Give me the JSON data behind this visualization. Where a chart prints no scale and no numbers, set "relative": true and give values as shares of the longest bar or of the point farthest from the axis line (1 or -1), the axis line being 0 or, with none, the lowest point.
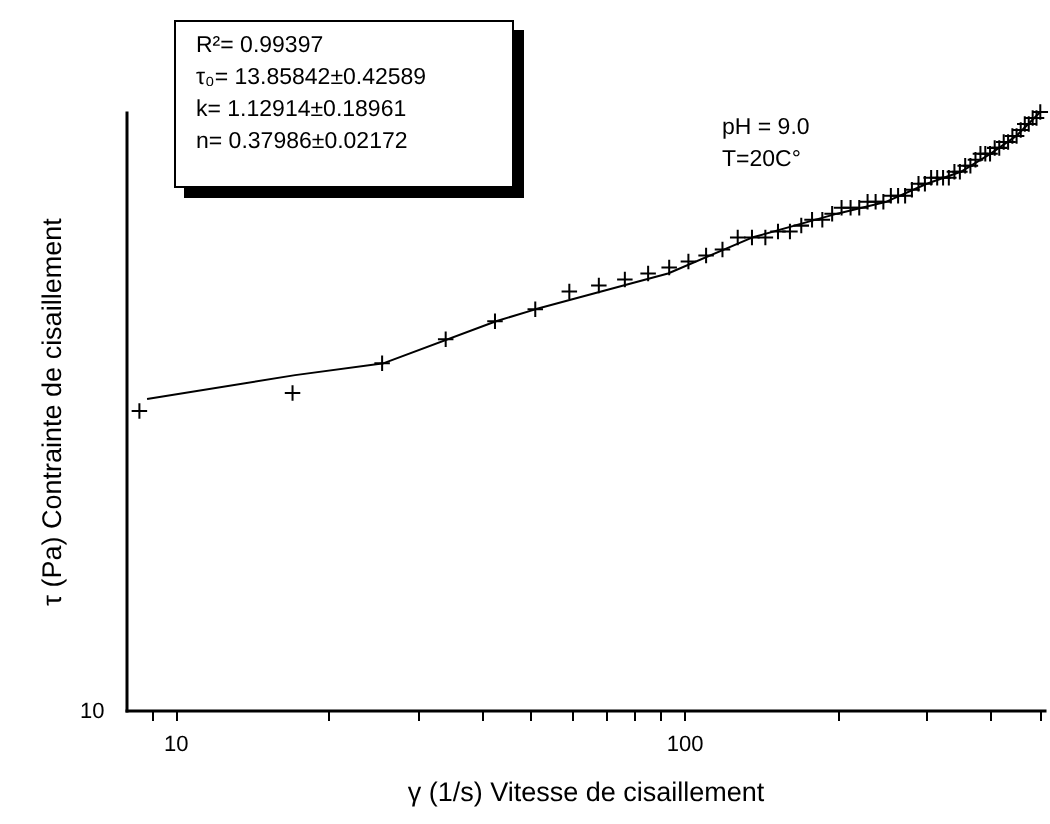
{
  "chart_data": {
    "type": "scatter",
    "xlabel": "γ (1/s) Vitesse de cisaillement",
    "ylabel": "τ (Pa) Contrainte de cisaillement",
    "log": "x",
    "relative": true,
    "tick_labels": "x",
    "xlim": [
      8,
      510
    ],
    "xticks": [
      {
        "value": 9,
        "label": null
      },
      10,
      {
        "value": 20,
        "label": null
      },
      {
        "value": 30,
        "label": null
      },
      {
        "value": 40,
        "label": null
      },
      {
        "value": 50,
        "label": null
      },
      {
        "value": 60,
        "label": null
      },
      {
        "value": 70,
        "label": null
      },
      {
        "value": 80,
        "label": null
      },
      {
        "value": 90,
        "label": null
      },
      100,
      {
        "value": 200,
        "label": null
      },
      {
        "value": 300,
        "label": null
      },
      {
        "value": 400,
        "label": null
      },
      {
        "value": 500,
        "label": null
      }
    ],
    "series": [
      {
        "marker": "cross",
        "color": "#000000",
        "x": [
          8.5,
          17,
          25.5,
          34,
          42.5,
          51,
          59.5,
          68,
          76.5,
          85,
          93.5,
          102,
          110.5,
          119,
          127.5,
          136,
          144.5,
          153,
          161.5,
          170,
          178.5,
          187,
          195.5,
          204,
          212.5,
          221,
          229.5,
          238,
          246.5,
          255,
          263.5,
          272,
          280.5,
          289,
          297.5,
          306,
          314.5,
          323,
          331.5,
          340,
          348.5,
          357,
          365.5,
          374,
          382.5,
          391,
          399.5,
          408,
          416.5,
          425,
          433.5,
          442,
          450.5,
          459,
          467.5,
          476,
          484.5,
          493,
          501.5
        ],
        "values": [
          0.5,
          0.53,
          0.58,
          0.62,
          0.65,
          0.67,
          0.7,
          0.71,
          0.72,
          0.73,
          0.74,
          0.75,
          0.76,
          0.77,
          0.79,
          0.79,
          0.79,
          0.8,
          0.8,
          0.81,
          0.82,
          0.82,
          0.83,
          0.84,
          0.84,
          0.84,
          0.85,
          0.85,
          0.85,
          0.86,
          0.86,
          0.86,
          0.87,
          0.88,
          0.88,
          0.89,
          0.89,
          0.89,
          0.89,
          0.9,
          0.9,
          0.91,
          0.91,
          0.92,
          0.93,
          0.93,
          0.93,
          0.94,
          0.94,
          0.95,
          0.95,
          0.96,
          0.96,
          0.97,
          0.98,
          0.98,
          0.99,
          0.99,
          1.0
        ]
      },
      {
        "type": "line",
        "marker": "none",
        "color": "#000000",
        "x": [
          8.8,
          17.2,
          25.7,
          42.7,
          51,
          93,
          136,
          200,
          250,
          300,
          350,
          400,
          450,
          501.5
        ],
        "values": [
          0.52,
          0.56,
          0.58,
          0.65,
          0.67,
          0.73,
          0.79,
          0.83,
          0.85,
          0.88,
          0.9,
          0.93,
          0.96,
          1.0
        ]
      }
    ],
    "annotations": [
      "R²= 0.99397",
      "τ₀= 13.85842±0.42589",
      "k= 1.12914±0.18961",
      "n= 0.37986±0.02172",
      "pH = 9.0",
      "T=20C°",
      "10"
    ]
  }
}
